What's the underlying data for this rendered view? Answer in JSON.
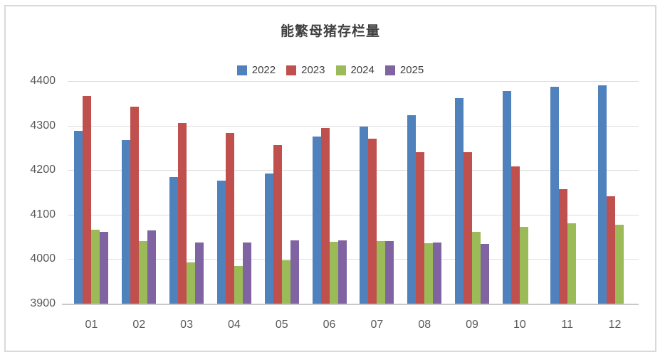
{
  "chart_data": {
    "type": "bar",
    "title": "能繁母猪存栏量",
    "categories": [
      "01",
      "02",
      "03",
      "04",
      "05",
      "06",
      "07",
      "08",
      "09",
      "10",
      "11",
      "12"
    ],
    "series": [
      {
        "name": "2022",
        "color": "#4F81BD",
        "values": [
          4289,
          4268,
          4185,
          4177,
          4192,
          4276,
          4297,
          4323,
          4361,
          4378,
          4388,
          4390
        ]
      },
      {
        "name": "2023",
        "color": "#C0504D",
        "values": [
          4367,
          4343,
          4305,
          4284,
          4257,
          4295,
          4270,
          4241,
          4240,
          4209,
          4158,
          4142
        ]
      },
      {
        "name": "2024",
        "color": "#9BBB59",
        "values": [
          4066,
          4041,
          3992,
          3985,
          3997,
          4039,
          4041,
          4036,
          4061,
          4072,
          4080,
          4078
        ]
      },
      {
        "name": "2025",
        "color": "#8064A2",
        "values": [
          4062,
          4065,
          4038,
          4038,
          4042,
          4042,
          4041,
          4038,
          4035,
          null,
          null,
          null
        ]
      }
    ],
    "xlabel": "",
    "ylabel": "",
    "ylim": [
      3900,
      4400
    ],
    "yticks": [
      3900,
      4000,
      4100,
      4200,
      4300,
      4400
    ],
    "legend_position": "top-center",
    "grid": true,
    "plot_bg": "#ffffff",
    "gridline_color": "#dedede",
    "axis_text_color": "#595959",
    "title_color": "#404040",
    "frame_border_color": "#d9d9d9"
  }
}
